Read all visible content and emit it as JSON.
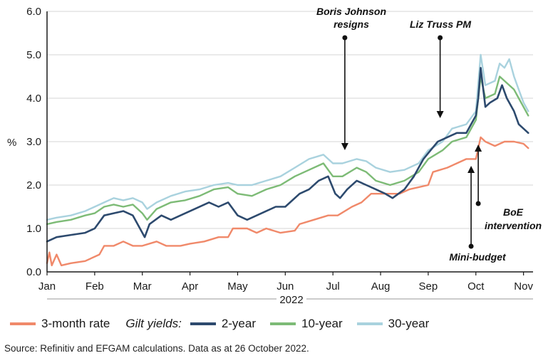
{
  "colors": {
    "rate_3m": "#f0896a",
    "gilt_2y": "#2d4a6e",
    "gilt_10y": "#7dbb76",
    "gilt_30y": "#a9d2de",
    "axis": "#1a1a1a"
  },
  "legend": {
    "rate_3m": "3-month rate",
    "gilt_yields_label": "Gilt yields:",
    "gilt_2y": "2-year",
    "gilt_10y": "10-year",
    "gilt_30y": "30-year"
  },
  "source": "Source: Refinitiv and EFGAM calculations. Data as at 26 October 2022.",
  "chart_data": {
    "type": "line",
    "title": "",
    "xlabel": "2022",
    "ylabel": "%",
    "xlim": [
      0,
      10.2
    ],
    "ylim": [
      0,
      6
    ],
    "y_ticks": [
      "0.0",
      "1.0",
      "2.0",
      "3.0",
      "4.0",
      "5.0",
      "6.0"
    ],
    "x_ticks": [
      "Jan",
      "Feb",
      "Mar",
      "Apr",
      "May",
      "Jun",
      "Jul",
      "Aug",
      "Sep",
      "Oct",
      "Nov"
    ],
    "x_unit": "months since 1 Jan 2022",
    "grid": "horizontal",
    "series": [
      {
        "name": "3-month rate",
        "points": [
          [
            0,
            0.2
          ],
          [
            0.05,
            0.45
          ],
          [
            0.1,
            0.15
          ],
          [
            0.2,
            0.4
          ],
          [
            0.3,
            0.15
          ],
          [
            0.5,
            0.2
          ],
          [
            0.8,
            0.25
          ],
          [
            1.1,
            0.4
          ],
          [
            1.2,
            0.6
          ],
          [
            1.4,
            0.6
          ],
          [
            1.6,
            0.7
          ],
          [
            1.8,
            0.6
          ],
          [
            2,
            0.6
          ],
          [
            2.3,
            0.7
          ],
          [
            2.5,
            0.6
          ],
          [
            2.8,
            0.6
          ],
          [
            3,
            0.65
          ],
          [
            3.3,
            0.7
          ],
          [
            3.6,
            0.8
          ],
          [
            3.8,
            0.8
          ],
          [
            3.9,
            1.0
          ],
          [
            4.2,
            1.0
          ],
          [
            4.4,
            0.9
          ],
          [
            4.6,
            1.0
          ],
          [
            4.9,
            0.9
          ],
          [
            5.2,
            0.95
          ],
          [
            5.3,
            1.1
          ],
          [
            5.6,
            1.2
          ],
          [
            5.9,
            1.3
          ],
          [
            6.1,
            1.3
          ],
          [
            6.4,
            1.5
          ],
          [
            6.6,
            1.6
          ],
          [
            6.8,
            1.8
          ],
          [
            7.0,
            1.8
          ],
          [
            7.4,
            1.8
          ],
          [
            7.6,
            1.9
          ],
          [
            8,
            2.0
          ],
          [
            8.1,
            2.3
          ],
          [
            8.4,
            2.4
          ],
          [
            8.6,
            2.5
          ],
          [
            8.8,
            2.6
          ],
          [
            9.0,
            2.6
          ],
          [
            9.1,
            3.1
          ],
          [
            9.2,
            3.0
          ],
          [
            9.4,
            2.9
          ],
          [
            9.6,
            3.0
          ],
          [
            9.8,
            3.0
          ],
          [
            10.0,
            2.95
          ],
          [
            10.1,
            2.85
          ]
        ]
      },
      {
        "name": "2-year",
        "points": [
          [
            0,
            0.7
          ],
          [
            0.2,
            0.8
          ],
          [
            0.5,
            0.85
          ],
          [
            0.8,
            0.9
          ],
          [
            1,
            1.0
          ],
          [
            1.2,
            1.3
          ],
          [
            1.4,
            1.35
          ],
          [
            1.6,
            1.4
          ],
          [
            1.8,
            1.3
          ],
          [
            1.95,
            1.0
          ],
          [
            2.05,
            0.8
          ],
          [
            2.15,
            1.1
          ],
          [
            2.4,
            1.3
          ],
          [
            2.6,
            1.2
          ],
          [
            2.8,
            1.3
          ],
          [
            3.1,
            1.45
          ],
          [
            3.4,
            1.6
          ],
          [
            3.6,
            1.5
          ],
          [
            3.8,
            1.6
          ],
          [
            4.0,
            1.3
          ],
          [
            4.2,
            1.2
          ],
          [
            4.4,
            1.3
          ],
          [
            4.6,
            1.4
          ],
          [
            4.8,
            1.5
          ],
          [
            5.0,
            1.5
          ],
          [
            5.3,
            1.8
          ],
          [
            5.5,
            1.9
          ],
          [
            5.7,
            2.1
          ],
          [
            5.9,
            2.2
          ],
          [
            6.05,
            1.8
          ],
          [
            6.15,
            1.7
          ],
          [
            6.3,
            1.9
          ],
          [
            6.5,
            2.1
          ],
          [
            6.7,
            2.0
          ],
          [
            6.9,
            1.9
          ],
          [
            7.1,
            1.8
          ],
          [
            7.25,
            1.7
          ],
          [
            7.5,
            1.9
          ],
          [
            7.7,
            2.2
          ],
          [
            7.9,
            2.6
          ],
          [
            8.05,
            2.8
          ],
          [
            8.2,
            3.0
          ],
          [
            8.4,
            3.1
          ],
          [
            8.6,
            3.2
          ],
          [
            8.8,
            3.2
          ],
          [
            9.0,
            3.6
          ],
          [
            9.05,
            4.0
          ],
          [
            9.1,
            4.7
          ],
          [
            9.2,
            3.8
          ],
          [
            9.3,
            3.9
          ],
          [
            9.45,
            4.0
          ],
          [
            9.55,
            4.3
          ],
          [
            9.65,
            4.0
          ],
          [
            9.8,
            3.7
          ],
          [
            9.9,
            3.4
          ],
          [
            10.0,
            3.3
          ],
          [
            10.1,
            3.2
          ]
        ]
      },
      {
        "name": "10-year",
        "points": [
          [
            0,
            1.1
          ],
          [
            0.2,
            1.15
          ],
          [
            0.5,
            1.2
          ],
          [
            0.8,
            1.3
          ],
          [
            1,
            1.35
          ],
          [
            1.2,
            1.5
          ],
          [
            1.4,
            1.55
          ],
          [
            1.6,
            1.5
          ],
          [
            1.8,
            1.55
          ],
          [
            2.0,
            1.35
          ],
          [
            2.1,
            1.2
          ],
          [
            2.3,
            1.45
          ],
          [
            2.6,
            1.6
          ],
          [
            2.9,
            1.65
          ],
          [
            3.2,
            1.75
          ],
          [
            3.5,
            1.9
          ],
          [
            3.8,
            1.95
          ],
          [
            4.0,
            1.8
          ],
          [
            4.3,
            1.75
          ],
          [
            4.6,
            1.9
          ],
          [
            4.9,
            2.0
          ],
          [
            5.2,
            2.2
          ],
          [
            5.5,
            2.35
          ],
          [
            5.8,
            2.5
          ],
          [
            6.0,
            2.2
          ],
          [
            6.2,
            2.2
          ],
          [
            6.5,
            2.4
          ],
          [
            6.7,
            2.3
          ],
          [
            6.9,
            2.1
          ],
          [
            7.2,
            2.0
          ],
          [
            7.5,
            2.1
          ],
          [
            7.8,
            2.3
          ],
          [
            8.0,
            2.6
          ],
          [
            8.3,
            2.8
          ],
          [
            8.5,
            3.0
          ],
          [
            8.8,
            3.1
          ],
          [
            9.0,
            3.5
          ],
          [
            9.1,
            4.5
          ],
          [
            9.2,
            4.0
          ],
          [
            9.4,
            4.1
          ],
          [
            9.5,
            4.5
          ],
          [
            9.6,
            4.4
          ],
          [
            9.8,
            4.2
          ],
          [
            9.9,
            4.0
          ],
          [
            10.0,
            3.8
          ],
          [
            10.1,
            3.6
          ]
        ]
      },
      {
        "name": "30-year",
        "points": [
          [
            0,
            1.2
          ],
          [
            0.2,
            1.25
          ],
          [
            0.5,
            1.3
          ],
          [
            0.8,
            1.4
          ],
          [
            1,
            1.5
          ],
          [
            1.2,
            1.6
          ],
          [
            1.4,
            1.7
          ],
          [
            1.6,
            1.65
          ],
          [
            1.8,
            1.7
          ],
          [
            2.0,
            1.6
          ],
          [
            2.1,
            1.45
          ],
          [
            2.3,
            1.6
          ],
          [
            2.6,
            1.75
          ],
          [
            2.9,
            1.85
          ],
          [
            3.2,
            1.9
          ],
          [
            3.5,
            2.0
          ],
          [
            3.8,
            2.05
          ],
          [
            4.0,
            2.0
          ],
          [
            4.3,
            2.0
          ],
          [
            4.6,
            2.1
          ],
          [
            4.9,
            2.2
          ],
          [
            5.2,
            2.4
          ],
          [
            5.5,
            2.6
          ],
          [
            5.8,
            2.7
          ],
          [
            6.0,
            2.5
          ],
          [
            6.2,
            2.5
          ],
          [
            6.5,
            2.6
          ],
          [
            6.7,
            2.55
          ],
          [
            6.9,
            2.4
          ],
          [
            7.2,
            2.3
          ],
          [
            7.5,
            2.35
          ],
          [
            7.8,
            2.5
          ],
          [
            8.0,
            2.8
          ],
          [
            8.3,
            3.0
          ],
          [
            8.5,
            3.3
          ],
          [
            8.8,
            3.4
          ],
          [
            9.0,
            3.7
          ],
          [
            9.1,
            5.0
          ],
          [
            9.2,
            4.3
          ],
          [
            9.4,
            4.4
          ],
          [
            9.5,
            4.8
          ],
          [
            9.6,
            4.7
          ],
          [
            9.7,
            4.9
          ],
          [
            9.8,
            4.5
          ],
          [
            9.9,
            4.2
          ],
          [
            10.0,
            3.9
          ],
          [
            10.1,
            3.7
          ]
        ]
      }
    ],
    "annotations": [
      {
        "lines": [
          "Boris Johnson",
          "resigns"
        ],
        "x": 6.25,
        "y": 2.6,
        "direction": "down"
      },
      {
        "lines": [
          "Liz Truss PM"
        ],
        "x": 8.25,
        "y": 3.55,
        "direction": "down"
      },
      {
        "lines": [
          "BoE",
          "intervention"
        ],
        "x": 9.05,
        "y": 3.0,
        "direction": "up"
      },
      {
        "lines": [
          "Mini-budget"
        ],
        "x": 8.9,
        "y": 2.4,
        "direction": "up"
      }
    ]
  }
}
